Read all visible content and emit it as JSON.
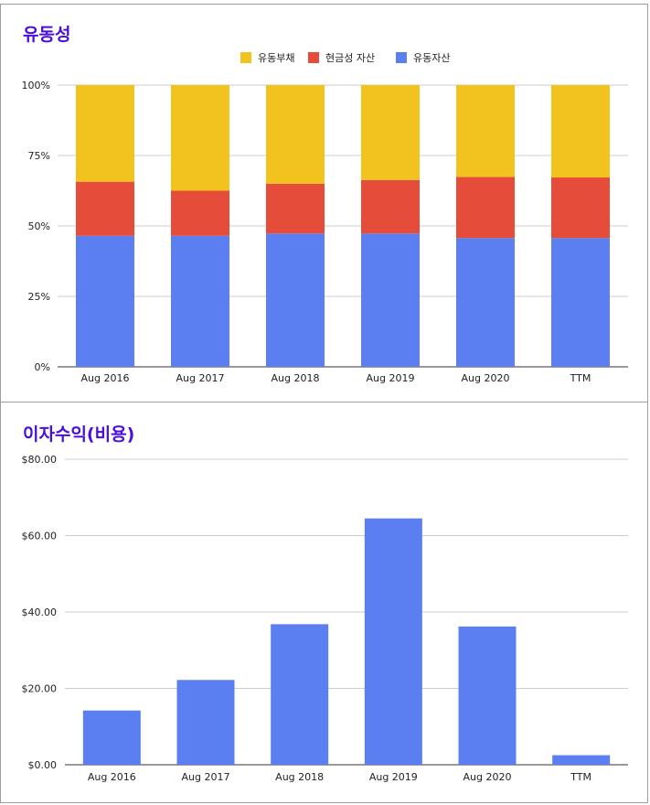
{
  "charts": {
    "liquidity": {
      "title": "유동성",
      "chart_data": {
        "type": "bar",
        "stacked": true,
        "title": "유동성",
        "categories": [
          "Aug 2016",
          "Aug 2017",
          "Aug 2018",
          "Aug 2019",
          "Aug 2020",
          "TTM"
        ],
        "series": [
          {
            "name": "유동자산",
            "color": "#5b7ff0",
            "values": [
              46.5,
              46.5,
              47.3,
              47.3,
              45.7,
              45.7
            ]
          },
          {
            "name": "현금성 자산",
            "color": "#e54c3a",
            "values": [
              19.2,
              16.0,
              17.7,
              19.0,
              21.7,
              21.5
            ]
          },
          {
            "name": "유동부채",
            "color": "#f2c31f",
            "values": [
              34.3,
              37.5,
              35.0,
              33.7,
              32.6,
              32.8
            ]
          }
        ],
        "legend_order": [
          "유동부채",
          "현금성 자산",
          "유동자산"
        ],
        "ylim": [
          0,
          100
        ],
        "yticks": [
          "0%",
          "25%",
          "50%",
          "75%",
          "100%"
        ],
        "ytick_values": [
          0,
          25,
          50,
          75,
          100
        ],
        "legend_position": "top-center",
        "grid": true
      }
    },
    "interest": {
      "title": "이자수익(비용)",
      "chart_data": {
        "type": "bar",
        "title": "이자수익(비용)",
        "categories": [
          "Aug 2016",
          "Aug 2017",
          "Aug 2018",
          "Aug 2019",
          "Aug 2020",
          "TTM"
        ],
        "values": [
          14.2,
          22.2,
          36.8,
          64.5,
          36.2,
          2.5
        ],
        "color": "#5b7ff0",
        "ylim": [
          0,
          80
        ],
        "yticks": [
          "$0.00",
          "$20.00",
          "$40.00",
          "$60.00",
          "$80.00"
        ],
        "ytick_values": [
          0,
          20,
          40,
          60,
          80
        ],
        "grid": true
      }
    }
  }
}
